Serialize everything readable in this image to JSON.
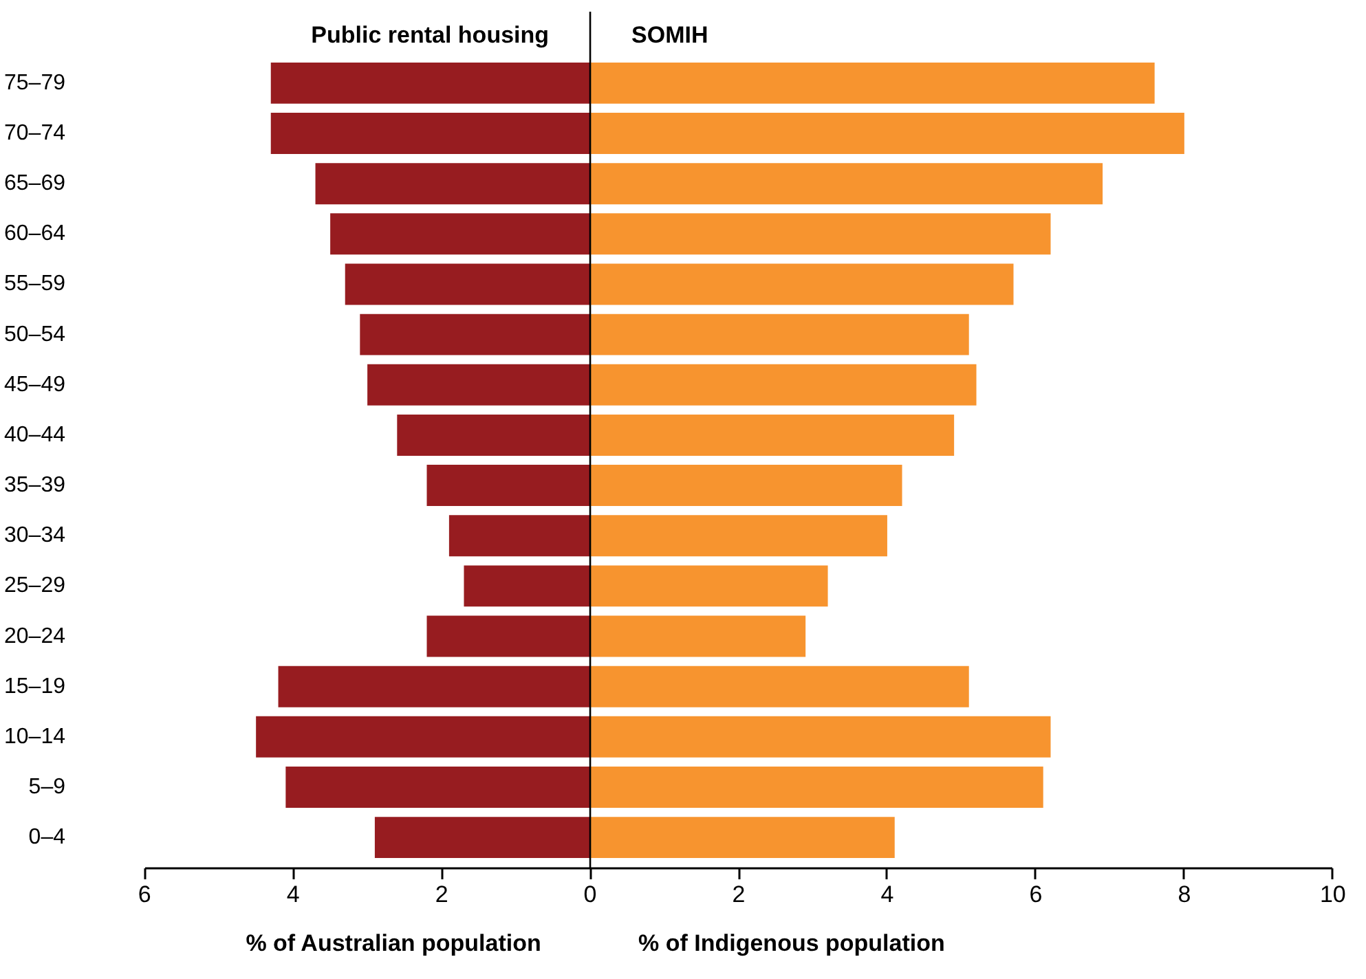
{
  "chart_data": {
    "type": "bar",
    "orientation": "horizontal",
    "stacked": true,
    "categories": [
      "75–79",
      "70–74",
      "65–69",
      "60–64",
      "55–59",
      "50–54",
      "45–49",
      "40–44",
      "35–39",
      "30–34",
      "25–29",
      "20–24",
      "15–19",
      "10–14",
      "5–9",
      "0–4"
    ],
    "series": [
      {
        "name": "Public rental housing",
        "color": "#971c20",
        "values": [
          -4.3,
          -4.3,
          -3.7,
          -3.5,
          -3.3,
          -3.1,
          -3.0,
          -2.6,
          -2.2,
          -1.9,
          -1.7,
          -2.2,
          -4.2,
          -4.5,
          -4.1,
          -2.9
        ]
      },
      {
        "name": "SOMIH",
        "color": "#f7942f",
        "values": [
          7.6,
          8.0,
          6.9,
          6.2,
          5.7,
          5.1,
          5.2,
          4.9,
          4.2,
          4.0,
          3.2,
          2.9,
          5.1,
          6.2,
          6.1,
          4.1
        ]
      }
    ],
    "xlim": [
      -6,
      10
    ],
    "xticks": [
      {
        "value": -6,
        "label": "6"
      },
      {
        "value": -4,
        "label": "4"
      },
      {
        "value": -2,
        "label": "2"
      },
      0,
      2,
      4,
      6,
      8,
      10
    ],
    "ref_lines": [
      {
        "axis": "x",
        "value": 0,
        "color": "#000000"
      }
    ],
    "annotations": [
      "% of Australian population",
      "% of Indigenous population"
    ]
  }
}
